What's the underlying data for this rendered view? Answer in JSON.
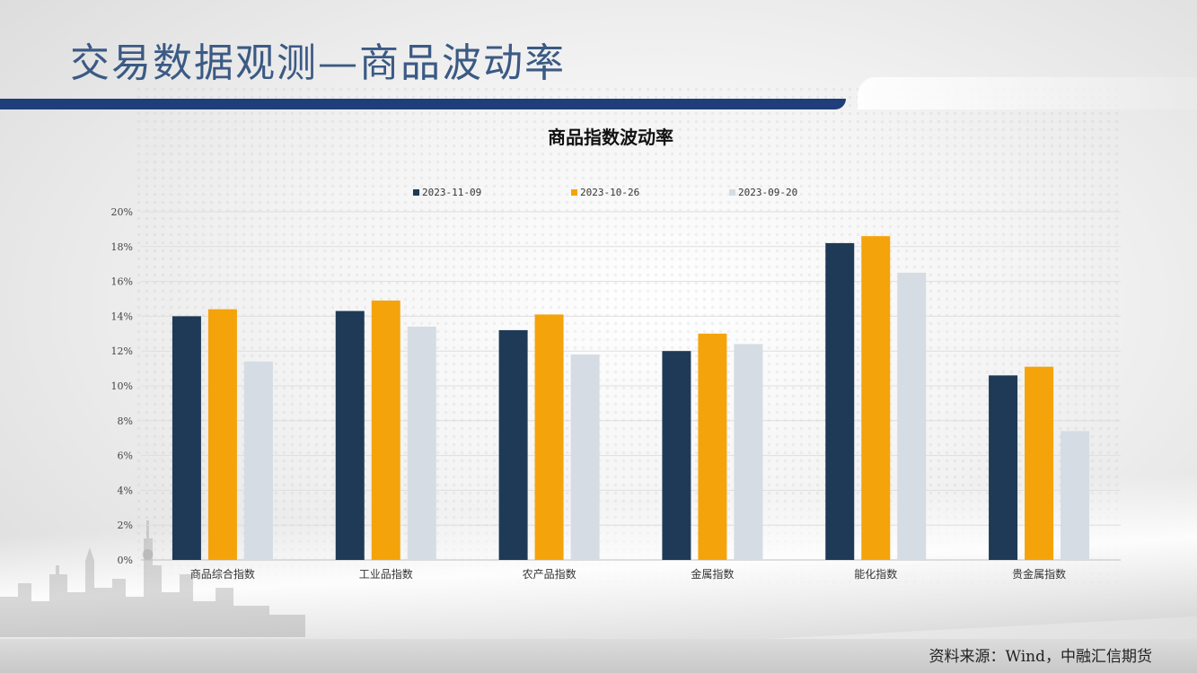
{
  "slide": {
    "title": "交易数据观测—商品波动率",
    "source": "资料来源：Wind，中融汇信期货"
  },
  "chart_data": {
    "type": "bar",
    "title": "商品指数波动率",
    "categories": [
      "商品综合指数",
      "工业品指数",
      "农产品指数",
      "金属指数",
      "能化指数",
      "贵金属指数"
    ],
    "series": [
      {
        "name": "2023-11-09",
        "color": "#1e3a56",
        "values": [
          14.0,
          14.3,
          13.2,
          12.0,
          18.2,
          10.6
        ]
      },
      {
        "name": "2023-10-26",
        "color": "#f5a30a",
        "values": [
          14.4,
          14.9,
          14.1,
          13.0,
          18.6,
          11.1
        ]
      },
      {
        "name": "2023-09-20",
        "color": "#d5dce4",
        "values": [
          11.4,
          13.4,
          11.8,
          12.4,
          16.5,
          7.4
        ]
      }
    ],
    "ylim": [
      0,
      20
    ],
    "yticks": [
      "0%",
      "2%",
      "4%",
      "6%",
      "8%",
      "10%",
      "12%",
      "14%",
      "16%",
      "18%",
      "20%"
    ],
    "y_unit": "%",
    "grid": true,
    "legend_position": "top"
  }
}
